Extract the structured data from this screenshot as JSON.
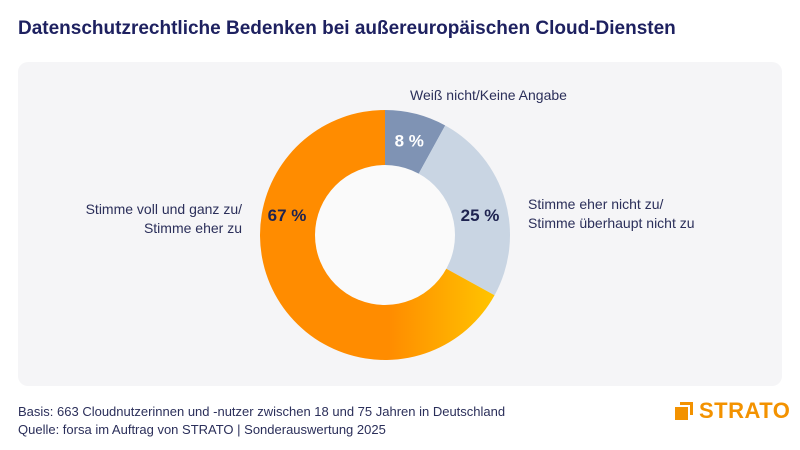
{
  "title": "Datenschutzrechtliche Bedenken bei außereuropäischen Cloud-Diensten",
  "chart_data": {
    "type": "pie",
    "variant": "donut",
    "title": "Datenschutzrechtliche Bedenken bei außereuropäischen Cloud-Diensten",
    "slices": [
      {
        "label": "Weiß nicht/Keine Angabe",
        "value": 8,
        "data_label": "8 %",
        "color": "#7f93b4"
      },
      {
        "label_lines": [
          "Stimme eher nicht zu/",
          "Stimme überhaupt nicht zu"
        ],
        "value": 25,
        "data_label": "25 %",
        "color": "#c9d5e3"
      },
      {
        "label_lines": [
          "Stimme voll und ganz zu/",
          "Stimme eher zu"
        ],
        "value": 67,
        "data_label": "67 %",
        "color": "#ff8c00",
        "gradient_end": "#ffc400"
      }
    ]
  },
  "footer": {
    "basis": "Basis: 663 Cloudnutzerinnen und -nutzer zwischen 18 und 75 Jahren in Deutschland",
    "source": "Quelle: forsa im Auftrag von STRATO | Sonderauswertung 2025"
  },
  "logo": {
    "text": "STRATO",
    "color": "#f39200"
  }
}
